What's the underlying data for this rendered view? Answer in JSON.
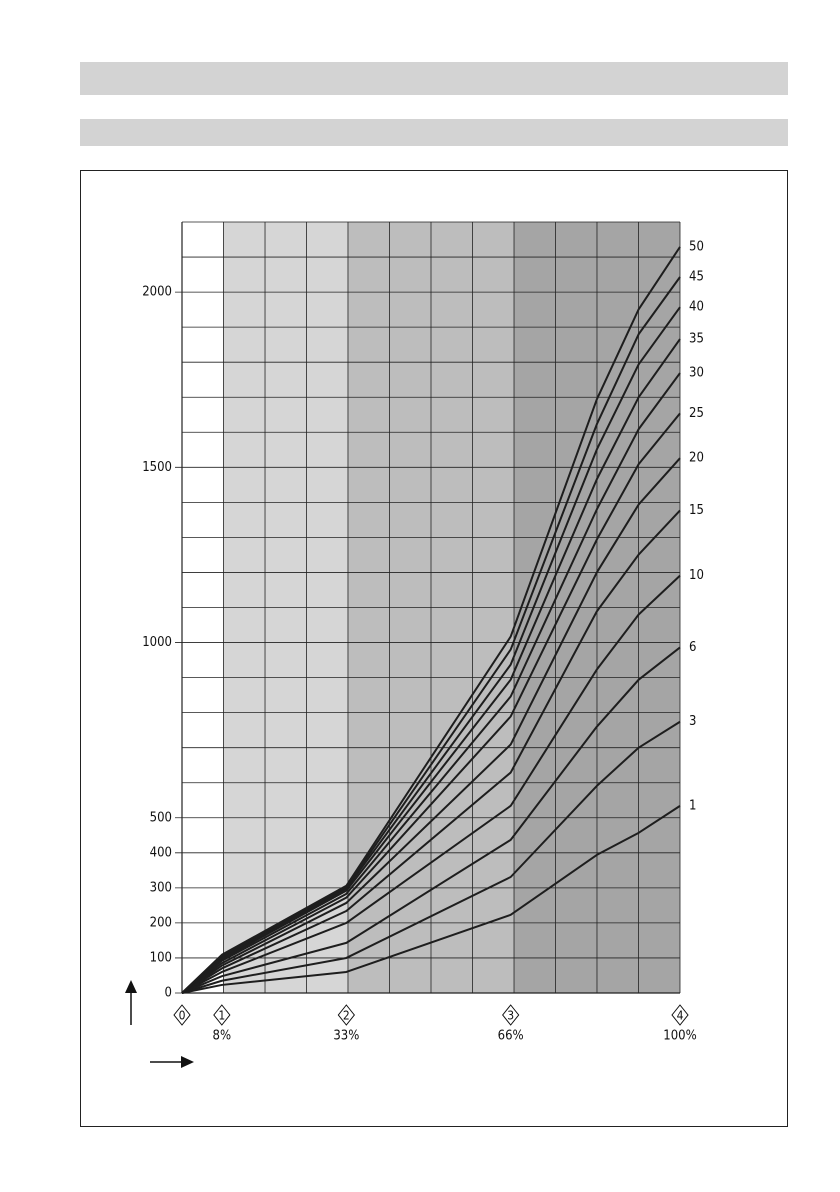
{
  "chart_data": {
    "type": "line",
    "x": [
      0,
      8,
      33,
      66,
      83.3,
      91.7,
      100
    ],
    "xlim": [
      0,
      100
    ],
    "ylim": [
      0,
      2200
    ],
    "yticks": [
      0,
      100,
      200,
      300,
      400,
      500,
      1000,
      1500,
      2000
    ],
    "y_minor_ticks": [
      600,
      700,
      800,
      900,
      1100,
      1200,
      1300,
      1400,
      1600,
      1700,
      1800,
      1900,
      2100,
      2200
    ],
    "x_grid": [
      0,
      8.33,
      16.67,
      25,
      33.33,
      41.67,
      50,
      58.33,
      66.67,
      75,
      83.33,
      91.67,
      100
    ],
    "bands": [
      {
        "from": 8.33,
        "to": 33.33,
        "color": "#d6d6d6"
      },
      {
        "from": 33.33,
        "to": 66.67,
        "color": "#bdbdbd"
      },
      {
        "from": 66.67,
        "to": 100,
        "color": "#a5a5a5"
      }
    ],
    "stages": [
      {
        "label": "0",
        "x": 0
      },
      {
        "label": "1",
        "x": 8,
        "percent": "8%"
      },
      {
        "label": "2",
        "x": 33,
        "percent": "33%"
      },
      {
        "label": "3",
        "x": 66,
        "percent": "66%"
      },
      {
        "label": "4",
        "x": 100,
        "percent": "100%"
      }
    ],
    "color": "#1e1e1e",
    "series": [
      {
        "name": "1",
        "values": [
          0,
          23,
          60,
          223,
          394,
          457,
          534
        ]
      },
      {
        "name": "3",
        "values": [
          0,
          35,
          100,
          331,
          591,
          700,
          774
        ]
      },
      {
        "name": "6",
        "values": [
          0,
          48,
          143,
          437,
          760,
          894,
          986
        ]
      },
      {
        "name": "10",
        "values": [
          0,
          60,
          200,
          534,
          923,
          1080,
          1191
        ]
      },
      {
        "name": "15",
        "values": [
          0,
          70,
          234,
          629,
          1089,
          1251,
          1377
        ]
      },
      {
        "name": "20",
        "values": [
          0,
          78,
          257,
          709,
          1200,
          1394,
          1526
        ]
      },
      {
        "name": "25",
        "values": [
          0,
          85,
          272,
          789,
          1294,
          1509,
          1654
        ]
      },
      {
        "name": "30",
        "values": [
          0,
          92,
          283,
          846,
          1380,
          1609,
          1769
        ]
      },
      {
        "name": "35",
        "values": [
          0,
          97,
          292,
          894,
          1466,
          1700,
          1866
        ]
      },
      {
        "name": "40",
        "values": [
          0,
          101,
          298,
          937,
          1551,
          1794,
          1957
        ]
      },
      {
        "name": "45",
        "values": [
          0,
          105,
          302,
          980,
          1623,
          1880,
          2043
        ]
      },
      {
        "name": "50",
        "values": [
          0,
          109,
          306,
          1017,
          1694,
          1951,
          2129
        ]
      }
    ]
  }
}
